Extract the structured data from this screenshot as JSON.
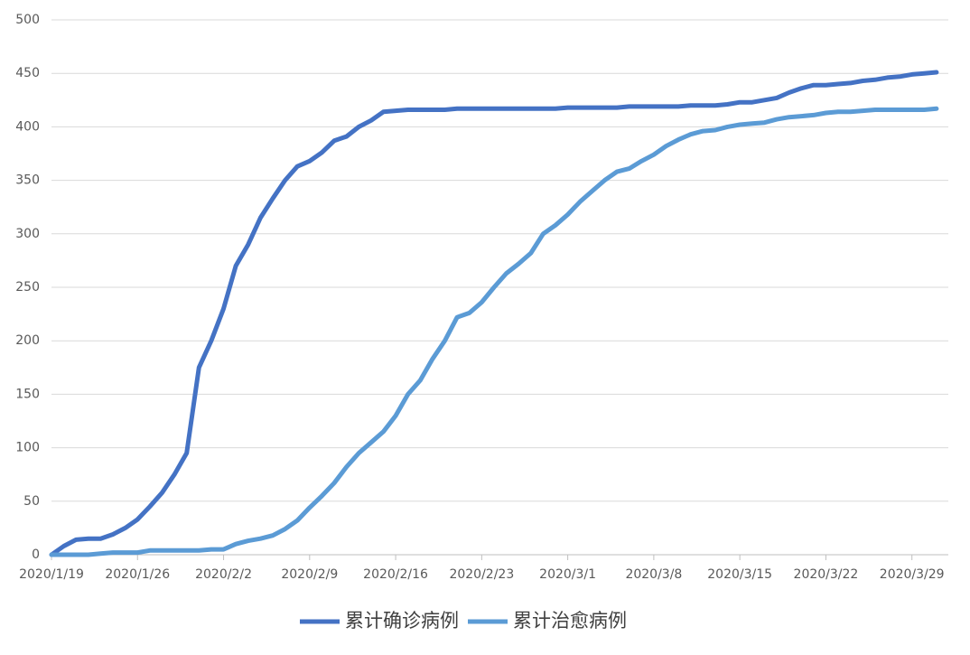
{
  "chart_data": {
    "type": "line",
    "categories": [
      "2020/1/19",
      null,
      null,
      null,
      null,
      null,
      null,
      "2020/1/26",
      null,
      null,
      null,
      null,
      null,
      null,
      "2020/2/2",
      null,
      null,
      null,
      null,
      null,
      null,
      "2020/2/9",
      null,
      null,
      null,
      null,
      null,
      null,
      "2020/2/16",
      null,
      null,
      null,
      null,
      null,
      null,
      "2020/2/23",
      null,
      null,
      null,
      null,
      null,
      null,
      "2020/3/1",
      null,
      null,
      null,
      null,
      null,
      null,
      "2020/3/8",
      null,
      null,
      null,
      null,
      null,
      null,
      "2020/3/15",
      null,
      null,
      null,
      null,
      null,
      null,
      "2020/3/22",
      null,
      null,
      null,
      null,
      null,
      null,
      "2020/3/29",
      null,
      null
    ],
    "series": [
      {
        "name": "累计确诊病例",
        "color": "#4472c4",
        "values": [
          0,
          8,
          14,
          15,
          15,
          19,
          25,
          33,
          45,
          58,
          75,
          95,
          175,
          200,
          230,
          270,
          290,
          315,
          333,
          350,
          363,
          368,
          376,
          387,
          391,
          400,
          406,
          414,
          415,
          416,
          416,
          416,
          416,
          417,
          417,
          417,
          417,
          417,
          417,
          417,
          417,
          417,
          418,
          418,
          418,
          418,
          418,
          419,
          419,
          419,
          419,
          419,
          420,
          420,
          420,
          421,
          423,
          423,
          425,
          427,
          432,
          436,
          439,
          439,
          440,
          441,
          443,
          444,
          446,
          447,
          449,
          450,
          451
        ]
      },
      {
        "name": "累计治愈病例",
        "color": "#5b9bd5",
        "values": [
          0,
          0,
          0,
          0,
          1,
          2,
          2,
          2,
          4,
          4,
          4,
          4,
          4,
          5,
          5,
          10,
          13,
          15,
          18,
          24,
          32,
          44,
          55,
          67,
          82,
          95,
          105,
          115,
          130,
          150,
          163,
          183,
          200,
          222,
          226,
          236,
          250,
          263,
          272,
          282,
          300,
          308,
          318,
          330,
          340,
          350,
          358,
          361,
          368,
          374,
          382,
          388,
          393,
          396,
          397,
          400,
          402,
          403,
          404,
          407,
          409,
          410,
          411,
          413,
          414,
          414,
          415,
          416,
          416,
          416,
          416,
          416,
          417
        ]
      }
    ],
    "ylim": [
      0,
      500
    ],
    "yticks": [
      0,
      50,
      100,
      150,
      200,
      250,
      300,
      350,
      400,
      450,
      500
    ],
    "grid": true,
    "legend": "bottom"
  }
}
